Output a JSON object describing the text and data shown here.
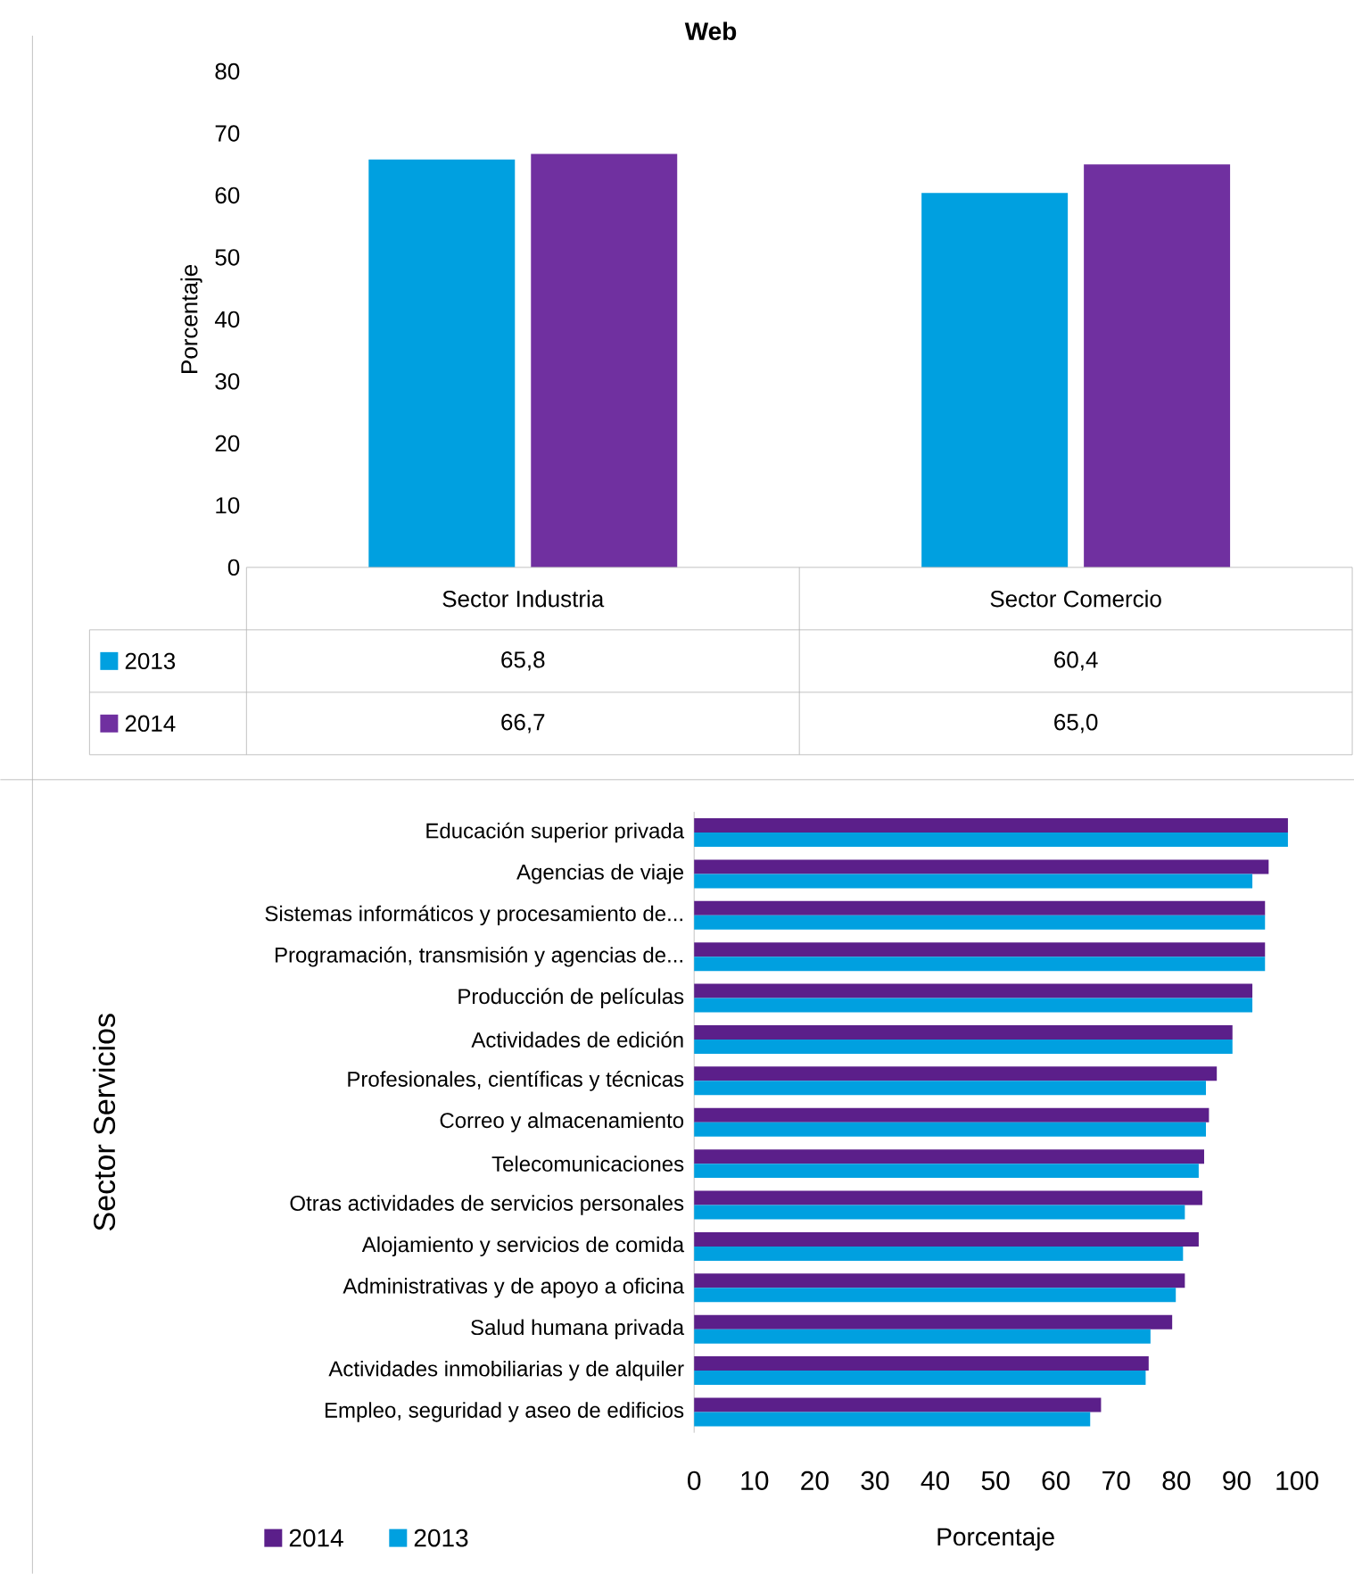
{
  "chart_data": [
    {
      "type": "bar",
      "title": "Web",
      "ylabel": "Porcentaje",
      "legend": "bottom left",
      "categories": [
        "Sector Industria",
        "Sector Comercio"
      ],
      "ylim": [
        0,
        80
      ],
      "yticks": [
        0,
        10,
        20,
        30,
        40,
        50,
        60,
        70,
        80
      ],
      "series": [
        {
          "name": "2013",
          "color": "#00a0e0",
          "values": [
            65.8,
            60.4
          ],
          "value_labels": [
            "65,8",
            "60,4"
          ]
        },
        {
          "name": "2014",
          "color": "#7030a0",
          "values": [
            66.7,
            65.0
          ],
          "value_labels": [
            "66,7",
            "65,0"
          ]
        }
      ]
    },
    {
      "type": "bar",
      "orientation": "horizontal",
      "ylabel": "Sector Servicios",
      "xlabel": "Porcentaje",
      "legend": "bottom left",
      "categories": [
        "Educación superior privada",
        "Agencias de viaje",
        "Sistemas informáticos y procesamiento de...",
        "Programación, transmisión y agencias de...",
        "Producción de películas",
        "Actividades de edición",
        "Profesionales, científicas y técnicas",
        "Correo y almacenamiento",
        "Telecomunicaciones",
        "Otras actividades de servicios personales",
        "Alojamiento y servicios de comida",
        "Administrativas y de apoyo a oficina",
        "Salud humana privada",
        "Actividades inmobiliarias y de alquiler",
        "Empleo, seguridad y aseo de edificios"
      ],
      "xlim": [
        0,
        100
      ],
      "xticks": [
        0,
        10,
        20,
        30,
        40,
        50,
        60,
        70,
        80,
        90,
        100
      ],
      "series": [
        {
          "name": "2014",
          "color": "#5b1f8a",
          "values": [
            98.5,
            95.3,
            94.7,
            94.7,
            92.6,
            89.3,
            86.7,
            85.4,
            84.6,
            84.3,
            83.7,
            81.4,
            79.3,
            75.4,
            67.5
          ]
        },
        {
          "name": "2013",
          "color": "#00a0e0",
          "values": [
            98.5,
            92.6,
            94.7,
            94.7,
            92.6,
            89.3,
            84.9,
            84.9,
            83.7,
            81.4,
            81.1,
            79.9,
            75.7,
            74.9,
            65.7
          ]
        }
      ]
    }
  ]
}
